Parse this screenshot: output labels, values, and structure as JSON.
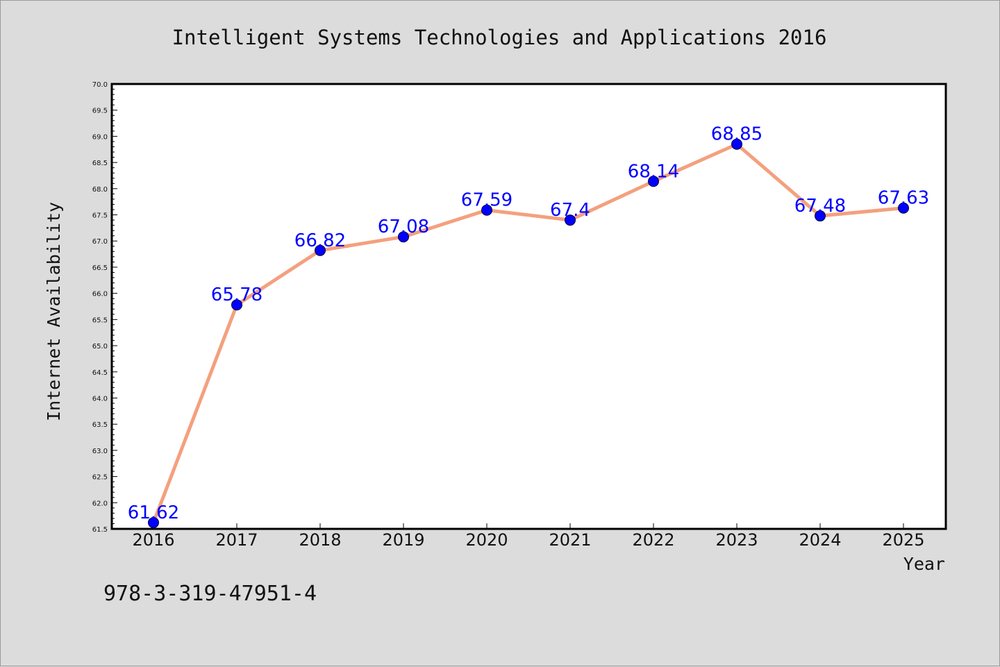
{
  "chart_data": {
    "type": "line",
    "title": "Intelligent Systems Technologies and Applications 2016",
    "xlabel": "Year",
    "ylabel": "Internet Availability",
    "categories": [
      "2016",
      "2017",
      "2018",
      "2019",
      "2020",
      "2021",
      "2022",
      "2023",
      "2024",
      "2025"
    ],
    "values": [
      61.62,
      65.78,
      66.82,
      67.08,
      67.59,
      67.4,
      68.14,
      68.85,
      67.48,
      67.63
    ],
    "data_labels": [
      "61.62",
      "65.78",
      "66.82",
      "67.08",
      "67.59",
      "67.4",
      "68.14",
      "68.85",
      "67.48",
      "67.63"
    ],
    "ylim": [
      61.5,
      70.0
    ],
    "yticks": [
      "61.5",
      "62.0",
      "62.5",
      "63.0",
      "63.5",
      "64.0",
      "64.5",
      "65.0",
      "65.5",
      "66.0",
      "66.5",
      "67.0",
      "67.5",
      "68.0",
      "68.5",
      "69.0",
      "69.5",
      "70.0"
    ],
    "grid": false,
    "line_color": "#f4a07e",
    "marker_color": "#0000ff",
    "label_color": "#0000ff"
  },
  "footnote": "978-3-319-47951-4"
}
